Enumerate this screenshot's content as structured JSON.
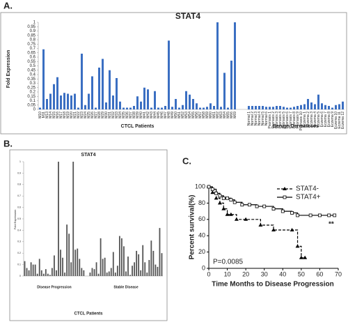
{
  "chart_data": [
    {
      "type": "bar",
      "panel_label": "A.",
      "title": "STAT4",
      "y_label": "Fold Expression",
      "color": "#3b6fc2",
      "ylim": [
        0,
        1
      ],
      "yticks": [
        0,
        0.05,
        0.1,
        0.15,
        0.2,
        0.25,
        0.3,
        0.35,
        0.4,
        0.45,
        0.5,
        0.55,
        0.6,
        0.65,
        0.7,
        0.75,
        0.8,
        0.85,
        0.9,
        0.95,
        1
      ],
      "groups": [
        {
          "name": "CTCL Patients",
          "categories": [
            "M10",
            "M11",
            "M13",
            "M14",
            "M15",
            "M16",
            "M17",
            "M18",
            "M19",
            "M20",
            "M21",
            "M22",
            "M23",
            "M24",
            "M25",
            "M26",
            "M27",
            "M28",
            "M29",
            "M30",
            "M31",
            "M32",
            "M33",
            "M34",
            "M35",
            "M36",
            "M37",
            "M38",
            "M39",
            "M40",
            "M41",
            "M42",
            "M43",
            "M44",
            "M45",
            "M46",
            "M47",
            "M48",
            "M49",
            "M50",
            "M51",
            "M52",
            "M53",
            "M54",
            "M55",
            "M56",
            "M57",
            "M58",
            "M59",
            "M60",
            "M61",
            "M62",
            "M63",
            "M64",
            "M65",
            "M66",
            "M69"
          ],
          "values": [
            0.02,
            0.69,
            0.12,
            0.18,
            0.29,
            0.37,
            0.16,
            0.19,
            0.18,
            0.16,
            0.18,
            0.02,
            0.64,
            0.05,
            0.18,
            0.38,
            0.02,
            0.48,
            0.58,
            0.08,
            0.45,
            0.16,
            0.36,
            0.09,
            0.02,
            0.02,
            0.02,
            0.04,
            0.15,
            0.09,
            0.25,
            0.23,
            0.02,
            0.21,
            0.02,
            0.02,
            0.04,
            0.79,
            0.03,
            0.12,
            0.02,
            0.05,
            0.21,
            0.17,
            0.12,
            0.07,
            0.02,
            0.02,
            0.03,
            0.07,
            0.04,
            1,
            0.03,
            0.42,
            0.02,
            0.56,
            1
          ]
        },
        {
          "name": "Benign Dermatoses",
          "categories": [
            "Normal 1",
            "Normal 2",
            "Normal 3",
            "Normal 4",
            "Normal 5",
            "Normal 6",
            "Psoriasis 1",
            "Psoriasis 2",
            "Psoriasis 3",
            "Psoriasis 4",
            "Psoriasis 5",
            "Psoriasis 6",
            "Psoriasis 7",
            "Psoriasis 8",
            "Psoriasis 9",
            "Psoriasis 10",
            "Eczema 1",
            "Eczema 2",
            "Eczema 3",
            "Eczema 4",
            "Eczema 5",
            "Eczema 6",
            "Eczema 7",
            "Eczema 8",
            "Eczema 9",
            "Eczema 10",
            "Eczema 11",
            "Eczema 12"
          ],
          "values": [
            0.04,
            0.04,
            0.04,
            0.04,
            0.04,
            0.03,
            0.03,
            0.03,
            0.04,
            0.04,
            0.03,
            0.02,
            0.02,
            0.03,
            0.04,
            0.05,
            0.06,
            0.12,
            0.08,
            0.06,
            0.17,
            0.07,
            0.05,
            0.04,
            0.02,
            0.05,
            0.06,
            0.09
          ]
        }
      ]
    },
    {
      "type": "bar",
      "panel_label": "B.",
      "title": "STAT4",
      "y_label": "Fold Expression",
      "x_label": "CTCL Patients",
      "color": "#555555",
      "ylim": [
        0,
        1
      ],
      "yticks": [
        0,
        0.1,
        0.2,
        0.3,
        0.4,
        0.5,
        0.6,
        0.7,
        0.8,
        0.9,
        1
      ],
      "groups": [
        {
          "name": "Disease Progression",
          "values": [
            0.13,
            0.07,
            0.05,
            0.12,
            0.1,
            0.1,
            0.02,
            0.15,
            0.05,
            0.02,
            0.06,
            0.02,
            0.01,
            0.07,
            0.18,
            0.05,
            1,
            0.23,
            0.16,
            0.03,
            0.45,
            0.37,
            0.12,
            1,
            0.23,
            0.24,
            0.15,
            0.07,
            0.05
          ]
        },
        {
          "name": "Stable Disease",
          "values": [
            0.03,
            0.07,
            0.06,
            0.12,
            0.02,
            0.33,
            0.15,
            0.16,
            0.03,
            0.04,
            0.07,
            0.21,
            0.03,
            0.09,
            0.35,
            0.33,
            0.26,
            0.04,
            0.17,
            0.01,
            0.09,
            0.12,
            0.22,
            0.19,
            0.05,
            0.27,
            0.12,
            0.03,
            0.14,
            0.31,
            0.22,
            0.1,
            0.08,
            0.42,
            0.2
          ]
        }
      ]
    },
    {
      "type": "step",
      "panel_label": "C.",
      "x_label": "Time Months to Disease Progression",
      "y_label": "Percent survival(%)",
      "xlim": [
        0,
        70
      ],
      "xticks": [
        0,
        10,
        20,
        30,
        40,
        50,
        60,
        70
      ],
      "ylim": [
        0,
        100
      ],
      "yticks": [
        0,
        20,
        40,
        60,
        80,
        100
      ],
      "annotations": [
        "P=0.0085",
        "**"
      ],
      "series": [
        {
          "name": "STAT4-",
          "color": "#000000",
          "dash": true,
          "marker": "triangle",
          "x": [
            0,
            2,
            4,
            6,
            8,
            10,
            12,
            15,
            20,
            28,
            35,
            45,
            48,
            50,
            52
          ],
          "values": [
            100,
            93,
            86,
            80,
            73,
            66,
            66,
            60,
            60,
            53,
            47,
            47,
            27,
            13,
            13
          ]
        },
        {
          "name": "STAT4+",
          "color": "#000000",
          "dash": false,
          "marker": "square",
          "x": [
            0,
            2,
            4,
            6,
            8,
            10,
            12,
            14,
            18,
            22,
            26,
            30,
            35,
            40,
            45,
            48,
            55,
            60,
            65,
            68
          ],
          "values": [
            100,
            97,
            92,
            89,
            86,
            86,
            84,
            81,
            78,
            78,
            76,
            76,
            73,
            70,
            68,
            65,
            65,
            65,
            65,
            65
          ]
        }
      ]
    }
  ]
}
